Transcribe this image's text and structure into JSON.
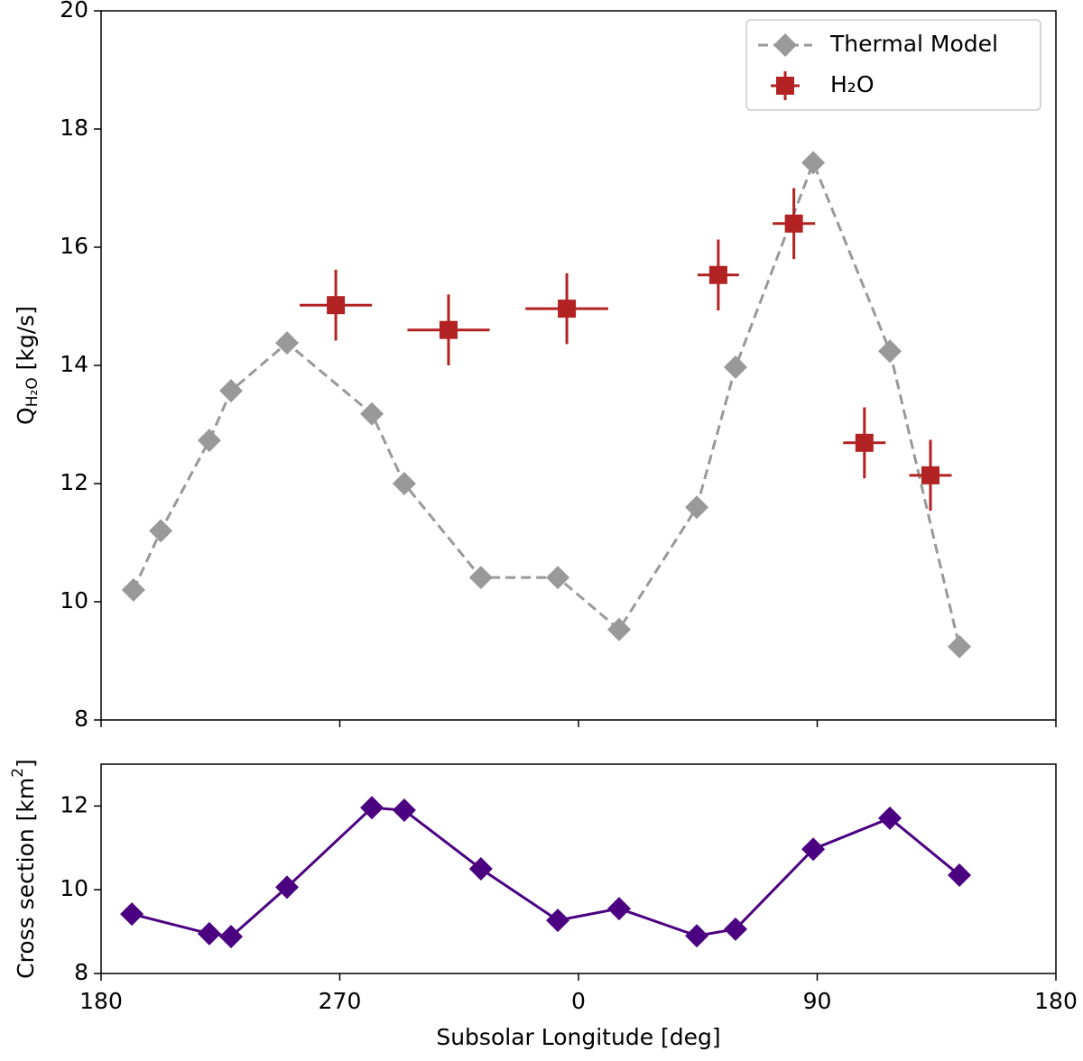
{
  "chart_data": [
    {
      "type": "line",
      "ylabel": {
        "main": "Q",
        "sub": "H₂O",
        "unit": " [kg/s]"
      },
      "xlim": [
        180,
        540
      ],
      "xticks": [
        180,
        270,
        360,
        450,
        540
      ],
      "ylim": [
        8,
        20
      ],
      "yticks": [
        8,
        10,
        12,
        14,
        16,
        18,
        20
      ],
      "legend": "upper right",
      "series": [
        {
          "name": "Thermal Model",
          "color": "#999999",
          "marker": "diamond",
          "linestyle": "dashed",
          "x": [
            192.2,
            202.5,
            220.8,
            229.0,
            250.1,
            282.1,
            294.3,
            323.2,
            352.2,
            375.3,
            404.6,
            419.2,
            448.5,
            477.4,
            503.6
          ],
          "values": [
            10.2,
            11.2,
            12.73,
            13.57,
            14.38,
            13.18,
            12.0,
            10.41,
            10.41,
            9.53,
            11.6,
            13.97,
            17.43,
            14.24,
            9.24
          ]
        },
        {
          "name": "H₂O",
          "color": "#b22222",
          "marker": "square",
          "linestyle": "none",
          "x": [
            268.5,
            311.0,
            355.6,
            412.7,
            441.2,
            467.8,
            492.7
          ],
          "values": [
            15.02,
            14.6,
            14.96,
            15.53,
            16.4,
            12.69,
            12.14
          ],
          "xerr": [
            13.6,
            15.5,
            15.6,
            7.8,
            8,
            8,
            8
          ],
          "yerr": [
            0.6,
            0.6,
            0.6,
            0.6,
            0.6,
            0.6,
            0.6
          ]
        }
      ]
    },
    {
      "type": "line",
      "ylabel": {
        "main": "Cross section [km",
        "sup": "2",
        "unit": "]"
      },
      "xlabel": "Subsolar Longitude [deg]",
      "xlim": [
        180,
        540
      ],
      "xticks": [
        {
          "value": 180,
          "label": "180"
        },
        {
          "value": 270,
          "label": "270"
        },
        {
          "value": 360,
          "label": "0"
        },
        {
          "value": 450,
          "label": "90"
        },
        {
          "value": 540,
          "label": "180"
        }
      ],
      "ylim": [
        8,
        13
      ],
      "yticks": [
        8,
        10,
        12
      ],
      "series": [
        {
          "color": "#4b0082",
          "marker": "diamond",
          "linestyle": "solid",
          "x": [
            191.6,
            220.8,
            229.0,
            250.1,
            282.1,
            294.3,
            323.2,
            352.2,
            375.3,
            404.6,
            419.2,
            448.5,
            477.4,
            503.6
          ],
          "values": [
            9.42,
            8.95,
            8.88,
            10.06,
            11.96,
            11.9,
            10.5,
            9.27,
            9.55,
            8.9,
            9.06,
            10.97,
            11.71,
            10.35
          ]
        }
      ]
    }
  ]
}
